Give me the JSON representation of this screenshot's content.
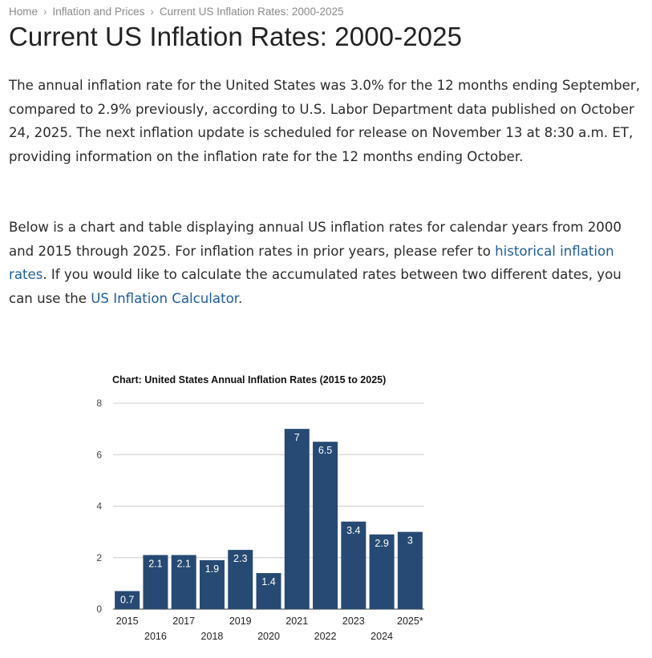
{
  "breadcrumb": {
    "items": [
      "Home",
      "Inflation and Prices",
      "Current US Inflation Rates: 2000-2025"
    ],
    "separator": "›"
  },
  "page_title": "Current US Inflation Rates: 2000-2025",
  "intro": {
    "text": "The annual inflation rate for the United States was 3.0% for the 12 months ending September, compared to 2.9% previously, according to U.S. Labor Department data published on October 24, 2025. The next inflation update is scheduled for release on November 13 at 8:30 a.m. ET, providing information on the inflation rate for the 12 months ending October."
  },
  "description": {
    "text_before_link1": "Below is a chart and table displaying annual US inflation rates for calendar years from 2000 and 2015 through 2025. For inflation rates in prior years, please refer to ",
    "link1": "historical inflation rates",
    "text_between": ". If you would like to calculate the accumulated rates between two different dates, you can use the ",
    "link2": "US Inflation Calculator",
    "text_after": "."
  },
  "colors": {
    "bar": "#264a73",
    "link": "#1f5c99",
    "grid": "#cccccc"
  },
  "chart_data": {
    "type": "bar",
    "title": "Chart: United States Annual Inflation Rates (2015 to 2025)",
    "categories": [
      "2015",
      "2016",
      "2017",
      "2018",
      "2019",
      "2020",
      "2021",
      "2022",
      "2023",
      "2024",
      "2025*"
    ],
    "values": [
      0.7,
      2.1,
      2.1,
      1.9,
      2.3,
      1.4,
      7,
      6.5,
      3.4,
      2.9,
      3
    ],
    "data_labels": [
      "0.7",
      "2.1",
      "2.1",
      "1.9",
      "2.3",
      "1.4",
      "7",
      "6.5",
      "3.4",
      "2.9",
      "3"
    ],
    "ylim": [
      0,
      8
    ],
    "yticks": [
      0,
      2,
      4,
      6,
      8
    ],
    "xlabel": "",
    "ylabel": "",
    "grid": true,
    "legend": "none"
  }
}
